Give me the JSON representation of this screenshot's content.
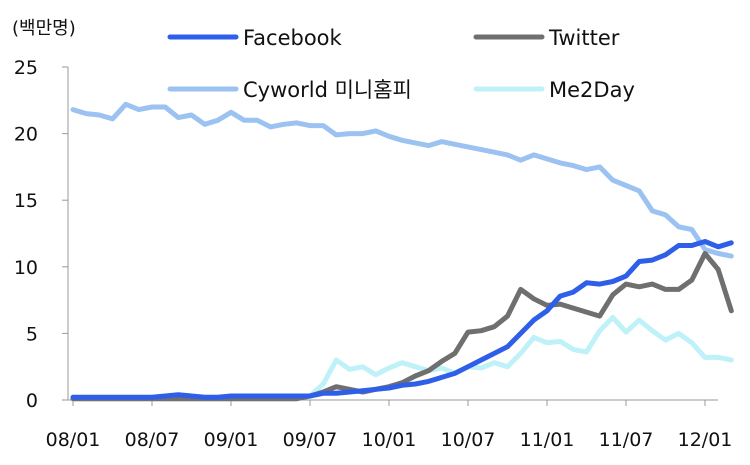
{
  "chart_data": {
    "type": "line",
    "title": "",
    "xlabel": "",
    "ylabel": "(백만명)",
    "ylim": [
      0,
      25
    ],
    "yticks": [
      0,
      5,
      10,
      15,
      20,
      25
    ],
    "x_tick_labels": [
      "08/01",
      "08/07",
      "09/01",
      "09/07",
      "10/01",
      "10/07",
      "11/01",
      "11/07",
      "12/01"
    ],
    "x_range": [
      "2008-01",
      "2012-02"
    ],
    "grid": false,
    "legend_placement": "top",
    "series": [
      {
        "name": "Facebook",
        "color": "#2f5fe8",
        "points": [
          [
            "2008-01",
            0.2
          ],
          [
            "2008-02",
            0.2
          ],
          [
            "2008-03",
            0.2
          ],
          [
            "2008-04",
            0.2
          ],
          [
            "2008-05",
            0.2
          ],
          [
            "2008-06",
            0.2
          ],
          [
            "2008-07",
            0.2
          ],
          [
            "2008-08",
            0.3
          ],
          [
            "2008-09",
            0.4
          ],
          [
            "2008-10",
            0.3
          ],
          [
            "2008-11",
            0.2
          ],
          [
            "2008-12",
            0.2
          ],
          [
            "2009-01",
            0.3
          ],
          [
            "2009-02",
            0.3
          ],
          [
            "2009-03",
            0.3
          ],
          [
            "2009-04",
            0.3
          ],
          [
            "2009-05",
            0.3
          ],
          [
            "2009-06",
            0.3
          ],
          [
            "2009-07",
            0.3
          ],
          [
            "2009-08",
            0.5
          ],
          [
            "2009-09",
            0.5
          ],
          [
            "2009-10",
            0.6
          ],
          [
            "2009-11",
            0.7
          ],
          [
            "2009-12",
            0.8
          ],
          [
            "2010-01",
            0.9
          ],
          [
            "2010-02",
            1.1
          ],
          [
            "2010-03",
            1.2
          ],
          [
            "2010-04",
            1.4
          ],
          [
            "2010-05",
            1.7
          ],
          [
            "2010-06",
            2.0
          ],
          [
            "2010-07",
            2.5
          ],
          [
            "2010-08",
            3.0
          ],
          [
            "2010-09",
            3.5
          ],
          [
            "2010-10",
            4.0
          ],
          [
            "2010-11",
            5.0
          ],
          [
            "2010-12",
            6.0
          ],
          [
            "2011-01",
            6.7
          ],
          [
            "2011-02",
            7.8
          ],
          [
            "2011-03",
            8.1
          ],
          [
            "2011-04",
            8.8
          ],
          [
            "2011-05",
            8.7
          ],
          [
            "2011-06",
            8.9
          ],
          [
            "2011-07",
            9.3
          ],
          [
            "2011-08",
            10.4
          ],
          [
            "2011-09",
            10.5
          ],
          [
            "2011-10",
            10.9
          ],
          [
            "2011-11",
            11.6
          ],
          [
            "2011-12",
            11.6
          ],
          [
            "2012-01",
            11.9
          ],
          [
            "2012-02",
            11.5
          ],
          [
            "2012-03",
            11.8
          ]
        ]
      },
      {
        "name": "Twitter",
        "color": "#6f6f6f",
        "points": [
          [
            "2008-01",
            0.1
          ],
          [
            "2008-02",
            0.1
          ],
          [
            "2008-03",
            0.1
          ],
          [
            "2008-04",
            0.1
          ],
          [
            "2008-05",
            0.1
          ],
          [
            "2008-06",
            0.1
          ],
          [
            "2008-07",
            0.1
          ],
          [
            "2008-08",
            0.1
          ],
          [
            "2008-09",
            0.1
          ],
          [
            "2008-10",
            0.1
          ],
          [
            "2008-11",
            0.1
          ],
          [
            "2008-12",
            0.1
          ],
          [
            "2009-01",
            0.1
          ],
          [
            "2009-02",
            0.1
          ],
          [
            "2009-03",
            0.1
          ],
          [
            "2009-04",
            0.1
          ],
          [
            "2009-05",
            0.1
          ],
          [
            "2009-06",
            0.1
          ],
          [
            "2009-07",
            0.3
          ],
          [
            "2009-08",
            0.6
          ],
          [
            "2009-09",
            1.0
          ],
          [
            "2009-10",
            0.8
          ],
          [
            "2009-11",
            0.6
          ],
          [
            "2009-12",
            0.8
          ],
          [
            "2010-01",
            1.0
          ],
          [
            "2010-02",
            1.3
          ],
          [
            "2010-03",
            1.8
          ],
          [
            "2010-04",
            2.2
          ],
          [
            "2010-05",
            2.9
          ],
          [
            "2010-06",
            3.5
          ],
          [
            "2010-07",
            5.1
          ],
          [
            "2010-08",
            5.2
          ],
          [
            "2010-09",
            5.5
          ],
          [
            "2010-10",
            6.3
          ],
          [
            "2010-11",
            8.3
          ],
          [
            "2010-12",
            7.6
          ],
          [
            "2011-01",
            7.1
          ],
          [
            "2011-02",
            7.2
          ],
          [
            "2011-03",
            6.9
          ],
          [
            "2011-04",
            6.6
          ],
          [
            "2011-05",
            6.3
          ],
          [
            "2011-06",
            7.9
          ],
          [
            "2011-07",
            8.7
          ],
          [
            "2011-08",
            8.5
          ],
          [
            "2011-09",
            8.7
          ],
          [
            "2011-10",
            8.3
          ],
          [
            "2011-11",
            8.3
          ],
          [
            "2011-12",
            9.0
          ],
          [
            "2012-01",
            11.0
          ],
          [
            "2012-02",
            9.8
          ],
          [
            "2012-03",
            6.7
          ]
        ]
      },
      {
        "name": "Cyworld 미니홈피",
        "color": "#9cc2f2",
        "points": [
          [
            "2008-01",
            21.8
          ],
          [
            "2008-02",
            21.5
          ],
          [
            "2008-03",
            21.4
          ],
          [
            "2008-04",
            21.1
          ],
          [
            "2008-05",
            22.2
          ],
          [
            "2008-06",
            21.8
          ],
          [
            "2008-07",
            22.0
          ],
          [
            "2008-08",
            22.0
          ],
          [
            "2008-09",
            21.2
          ],
          [
            "2008-10",
            21.4
          ],
          [
            "2008-11",
            20.7
          ],
          [
            "2008-12",
            21.0
          ],
          [
            "2009-01",
            21.6
          ],
          [
            "2009-02",
            21.0
          ],
          [
            "2009-03",
            21.0
          ],
          [
            "2009-04",
            20.5
          ],
          [
            "2009-05",
            20.7
          ],
          [
            "2009-06",
            20.8
          ],
          [
            "2009-07",
            20.6
          ],
          [
            "2009-08",
            20.6
          ],
          [
            "2009-09",
            19.9
          ],
          [
            "2009-10",
            20.0
          ],
          [
            "2009-11",
            20.0
          ],
          [
            "2009-12",
            20.2
          ],
          [
            "2010-01",
            19.8
          ],
          [
            "2010-02",
            19.5
          ],
          [
            "2010-03",
            19.3
          ],
          [
            "2010-04",
            19.1
          ],
          [
            "2010-05",
            19.4
          ],
          [
            "2010-06",
            19.2
          ],
          [
            "2010-07",
            19.0
          ],
          [
            "2010-08",
            18.8
          ],
          [
            "2010-09",
            18.6
          ],
          [
            "2010-10",
            18.4
          ],
          [
            "2010-11",
            18.0
          ],
          [
            "2010-12",
            18.4
          ],
          [
            "2011-01",
            18.1
          ],
          [
            "2011-02",
            17.8
          ],
          [
            "2011-03",
            17.6
          ],
          [
            "2011-04",
            17.3
          ],
          [
            "2011-05",
            17.5
          ],
          [
            "2011-06",
            16.5
          ],
          [
            "2011-07",
            16.1
          ],
          [
            "2011-08",
            15.7
          ],
          [
            "2011-09",
            14.2
          ],
          [
            "2011-10",
            13.9
          ],
          [
            "2011-11",
            13.0
          ],
          [
            "2011-12",
            12.8
          ],
          [
            "2012-01",
            11.3
          ],
          [
            "2012-02",
            11.0
          ],
          [
            "2012-03",
            10.8
          ]
        ]
      },
      {
        "name": "Me2Day",
        "color": "#bff2f8",
        "points": [
          [
            "2008-01",
            0.1
          ],
          [
            "2008-02",
            0.1
          ],
          [
            "2008-03",
            0.1
          ],
          [
            "2008-04",
            0.1
          ],
          [
            "2008-05",
            0.1
          ],
          [
            "2008-06",
            0.1
          ],
          [
            "2008-07",
            0.1
          ],
          [
            "2008-08",
            0.1
          ],
          [
            "2008-09",
            0.1
          ],
          [
            "2008-10",
            0.1
          ],
          [
            "2008-11",
            0.1
          ],
          [
            "2008-12",
            0.1
          ],
          [
            "2009-01",
            0.1
          ],
          [
            "2009-02",
            0.1
          ],
          [
            "2009-03",
            0.1
          ],
          [
            "2009-04",
            0.1
          ],
          [
            "2009-05",
            0.1
          ],
          [
            "2009-06",
            0.1
          ],
          [
            "2009-07",
            0.3
          ],
          [
            "2009-08",
            1.2
          ],
          [
            "2009-09",
            3.0
          ],
          [
            "2009-10",
            2.3
          ],
          [
            "2009-11",
            2.5
          ],
          [
            "2009-12",
            1.9
          ],
          [
            "2010-01",
            2.4
          ],
          [
            "2010-02",
            2.8
          ],
          [
            "2010-03",
            2.5
          ],
          [
            "2010-04",
            2.2
          ],
          [
            "2010-05",
            2.4
          ],
          [
            "2010-06",
            2.0
          ],
          [
            "2010-07",
            2.5
          ],
          [
            "2010-08",
            2.4
          ],
          [
            "2010-09",
            2.8
          ],
          [
            "2010-10",
            2.5
          ],
          [
            "2010-11",
            3.5
          ],
          [
            "2010-12",
            4.7
          ],
          [
            "2011-01",
            4.3
          ],
          [
            "2011-02",
            4.4
          ],
          [
            "2011-03",
            3.8
          ],
          [
            "2011-04",
            3.6
          ],
          [
            "2011-05",
            5.2
          ],
          [
            "2011-06",
            6.2
          ],
          [
            "2011-07",
            5.1
          ],
          [
            "2011-08",
            6.0
          ],
          [
            "2011-09",
            5.2
          ],
          [
            "2011-10",
            4.5
          ],
          [
            "2011-11",
            5.0
          ],
          [
            "2011-12",
            4.3
          ],
          [
            "2012-01",
            3.2
          ],
          [
            "2012-02",
            3.2
          ],
          [
            "2012-03",
            3.0
          ]
        ]
      }
    ]
  }
}
